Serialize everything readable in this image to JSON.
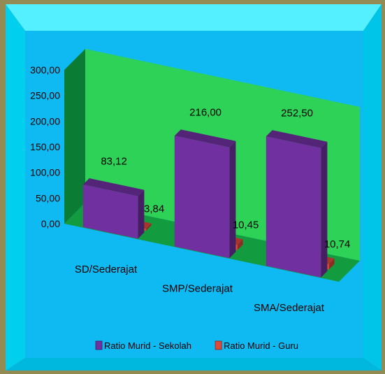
{
  "colors": {
    "frame_border": "#948a54",
    "bevel_light": "#55f0ff",
    "bevel_dark": "#00c4e8",
    "plot_background": "#0fb9f2",
    "back_wall": "#2ed257",
    "side_wall": "#0b7c34",
    "floor": "#139b3f",
    "series_1": "#7030a0",
    "series_2": "#e0483a"
  },
  "chart_data": {
    "type": "bar",
    "style": "3d-clustered-column",
    "categories": [
      "SD/Sederajat",
      "SMP/Sederajat",
      "SMA/Sederajat"
    ],
    "series": [
      {
        "name": "Ratio Murid - Sekolah",
        "values": [
          83.12,
          216.0,
          252.5
        ],
        "labels": [
          "83,12",
          "216,00",
          "252,50"
        ]
      },
      {
        "name": "Ratio Murid - Guru",
        "values": [
          3.84,
          10.45,
          10.74
        ],
        "labels": [
          "3,84",
          "10,45",
          "10,74"
        ]
      }
    ],
    "ylim": [
      0,
      300
    ],
    "yticks": [
      "0,00",
      "50,00",
      "100,00",
      "150,00",
      "200,00",
      "250,00",
      "300,00"
    ],
    "grid": false,
    "legend": "bottom"
  }
}
